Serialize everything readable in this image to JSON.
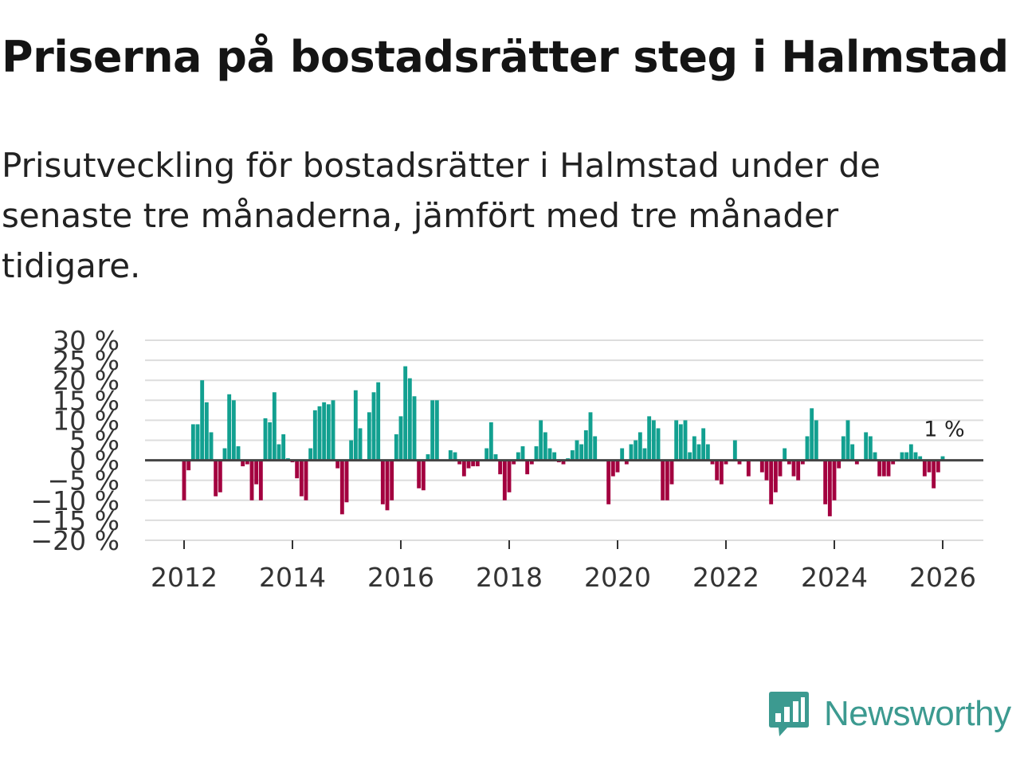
{
  "title": "Priserna på bostadsrätter steg i Halmstad",
  "subtitle": "Prisutveckling för bostadsrätter i Halmstad under de senaste tre månaderna, jämfört med tre månader tidigare.",
  "brand": {
    "name": "Newsworthy",
    "color": "#3c9a90"
  },
  "colors": {
    "positive": "#12a090",
    "negative": "#a3003f",
    "grid": "#dddddd",
    "zero": "#444444"
  },
  "chart_data": {
    "type": "bar",
    "title": "Priserna på bostadsrätter steg i Halmstad",
    "xlabel": "",
    "ylabel": "",
    "ylim": [
      -20,
      30
    ],
    "yticks": [
      30,
      25,
      20,
      15,
      10,
      5,
      0,
      -5,
      -10,
      -15,
      -20
    ],
    "ytick_labels": [
      "30 %",
      "25 %",
      "20 %",
      "15 %",
      "10 %",
      "5 %",
      "0 %",
      "−5 %",
      "−10 %",
      "−15 %",
      "−20 %"
    ],
    "xticks": [
      2012,
      2014,
      2016,
      2018,
      2020,
      2022,
      2024,
      2026
    ],
    "x_start": 2012.0,
    "x_step": 0.0833333,
    "values": [
      -10,
      -2.5,
      9,
      9,
      20,
      14.5,
      7,
      -9,
      -8,
      3,
      16.5,
      15,
      3.5,
      -1.5,
      -1,
      -10,
      -6,
      -10,
      10.5,
      9.5,
      17,
      4,
      6.5,
      0.5,
      -0.5,
      -4.5,
      -9,
      -10,
      3,
      12.5,
      13.5,
      14.5,
      14,
      15,
      -2,
      -13.5,
      -10.5,
      5,
      17.5,
      8,
      0,
      12,
      17,
      19.5,
      -11,
      -12.5,
      -10,
      6.5,
      11,
      23.5,
      20.5,
      16,
      -7,
      -7.5,
      1.5,
      15,
      15,
      0,
      0,
      2.5,
      2,
      -1,
      -4,
      -2,
      -1.5,
      -1.5,
      0,
      3,
      9.5,
      1.5,
      -3.5,
      -10,
      -8,
      -1,
      2,
      3.5,
      -3.5,
      -1,
      3.5,
      10,
      7,
      3,
      2,
      -0.5,
      -1,
      0.5,
      2.5,
      5,
      4,
      7.5,
      12,
      6,
      0,
      0,
      -11,
      -4,
      -3,
      3,
      -1,
      4,
      5,
      7,
      3,
      11,
      10,
      8,
      -10,
      -10,
      -6,
      10,
      9,
      10,
      2,
      6,
      4,
      8,
      4,
      -1,
      -5,
      -6,
      -1,
      0,
      5,
      -1,
      0,
      -4,
      0,
      0,
      -3,
      -5,
      -11,
      -8,
      -4,
      3,
      -1,
      -4,
      -5,
      -1,
      6,
      13,
      10,
      0,
      -11,
      -14,
      -10,
      -2,
      6,
      10,
      4,
      -1,
      0,
      7,
      6,
      2,
      -4,
      -4,
      -4,
      -1,
      0,
      2,
      2,
      4,
      2,
      1,
      -4,
      -3,
      -7,
      -3,
      1
    ],
    "annotation": {
      "text": "1 %",
      "x": 2026.0,
      "y": 1
    }
  }
}
